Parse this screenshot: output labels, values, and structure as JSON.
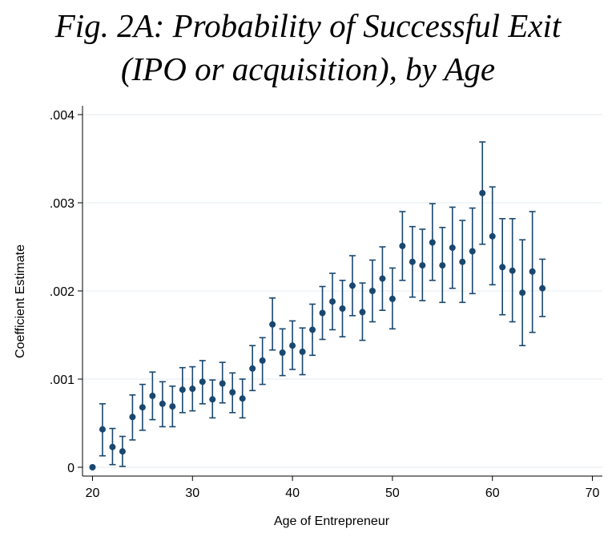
{
  "chart_data": {
    "type": "scatter",
    "title_line1": "Fig. 2A: Probability of Successful Exit",
    "title_line2": "(IPO or acquisition), by Age",
    "xlabel": "Age of Entrepreneur",
    "ylabel": "Coefficient Estimate",
    "xlim": [
      19,
      71
    ],
    "ylim": [
      -0.0001,
      0.0041
    ],
    "xticks": [
      20,
      30,
      40,
      50,
      60,
      70
    ],
    "xtick_labels": [
      "20",
      "30",
      "40",
      "50",
      "60",
      "70"
    ],
    "yticks": [
      0,
      0.001,
      0.002,
      0.003,
      0.004
    ],
    "ytick_labels": [
      "0",
      ".001",
      ".002",
      ".003",
      ".004"
    ],
    "grid": "horizontal",
    "colors": {
      "marker": "#1a476f",
      "grid": "#e4edf2",
      "axis": "#000000"
    },
    "series": [
      {
        "x": [
          20,
          21,
          22,
          23,
          24,
          25,
          26,
          27,
          28,
          29,
          30,
          31,
          32,
          33,
          34,
          35,
          36,
          37,
          38,
          39,
          40,
          41,
          42,
          43,
          44,
          45,
          46,
          47,
          48,
          49,
          50,
          51,
          52,
          53,
          54,
          55,
          56,
          57,
          58,
          59,
          60,
          61,
          62,
          63,
          64,
          65
        ],
        "y": [
          0,
          0.00043,
          0.00023,
          0.00018,
          0.00057,
          0.00068,
          0.00081,
          0.00072,
          0.00069,
          0.00088,
          0.00089,
          0.00097,
          0.00077,
          0.00095,
          0.00085,
          0.00078,
          0.00112,
          0.00121,
          0.00162,
          0.0013,
          0.00138,
          0.00131,
          0.00156,
          0.00175,
          0.00188,
          0.0018,
          0.00206,
          0.00176,
          0.002,
          0.00214,
          0.00191,
          0.00251,
          0.00233,
          0.00229,
          0.00255,
          0.00229,
          0.00249,
          0.00233,
          0.00245,
          0.00311,
          0.00262,
          0.00227,
          0.00223,
          0.00198,
          0.00222,
          0.00203
        ],
        "lower": [
          0,
          0.00013,
          3e-05,
          1e-05,
          0.00031,
          0.00042,
          0.00054,
          0.00046,
          0.00046,
          0.00062,
          0.00064,
          0.00072,
          0.00056,
          0.00073,
          0.00062,
          0.00056,
          0.00087,
          0.00094,
          0.00133,
          0.00104,
          0.00111,
          0.00105,
          0.00127,
          0.00145,
          0.00156,
          0.00148,
          0.00172,
          0.00144,
          0.00165,
          0.00178,
          0.00157,
          0.00212,
          0.00193,
          0.00189,
          0.00212,
          0.00187,
          0.00203,
          0.00187,
          0.00197,
          0.00253,
          0.00207,
          0.00173,
          0.00165,
          0.00138,
          0.00153,
          0.00171
        ],
        "upper": [
          0,
          0.00072,
          0.00044,
          0.00035,
          0.00082,
          0.00094,
          0.00108,
          0.00097,
          0.00092,
          0.00113,
          0.00114,
          0.00121,
          0.00099,
          0.00119,
          0.00107,
          0.001,
          0.00138,
          0.00147,
          0.00192,
          0.00157,
          0.00166,
          0.00158,
          0.00185,
          0.00205,
          0.0022,
          0.00212,
          0.0024,
          0.00209,
          0.00235,
          0.0025,
          0.00226,
          0.0029,
          0.00273,
          0.0027,
          0.00299,
          0.00272,
          0.00295,
          0.0028,
          0.00294,
          0.00369,
          0.00318,
          0.00282,
          0.00282,
          0.00258,
          0.0029,
          0.00236
        ]
      }
    ]
  }
}
